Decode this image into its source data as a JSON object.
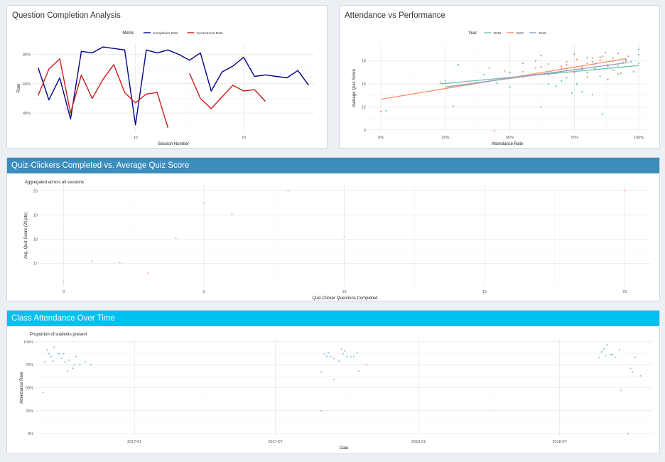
{
  "boxes": {
    "completion": {
      "title": "Question Completion Analysis"
    },
    "attendance_perf": {
      "title": "Attendance vs Performance"
    },
    "clickers": {
      "title": "Quiz-Clickers Completed vs. Average Quiz Score"
    },
    "attendance_time": {
      "title": "Class Attendance Over Time"
    }
  },
  "chart_data": [
    {
      "id": "completion",
      "type": "line",
      "xlabel": "Session Number",
      "ylabel": "Rate",
      "legend_title": "Metric",
      "legend_position": "top",
      "xticks": [
        10,
        20
      ],
      "yticks": [
        0.4,
        0.6,
        0.8
      ],
      "ytick_labels": [
        "40%",
        "60%",
        "80%"
      ],
      "xlim": [
        0.5,
        26.5
      ],
      "ylim": [
        0.27,
        0.87
      ],
      "grid": true,
      "series": [
        {
          "name": "Completion Rate",
          "color": "#00008b",
          "x": [
            1,
            2,
            3,
            4,
            5,
            6,
            7,
            8,
            9,
            10,
            11,
            12,
            13,
            14,
            15,
            16,
            17,
            18,
            19,
            20,
            21,
            22,
            23,
            24,
            25,
            26
          ],
          "y": [
            0.71,
            0.49,
            0.64,
            0.36,
            0.82,
            0.81,
            0.85,
            0.84,
            0.83,
            0.32,
            0.83,
            0.81,
            0.83,
            0.8,
            0.76,
            0.81,
            0.55,
            0.68,
            0.72,
            0.78,
            0.65,
            0.66,
            0.65,
            0.64,
            0.69,
            0.59
          ]
        },
        {
          "name": "Correctness Rate",
          "color": "#cc1a1a",
          "x": [
            1,
            2,
            3,
            4,
            5,
            6,
            7,
            8,
            9,
            10,
            11,
            12,
            13,
            14,
            15,
            16,
            17,
            18,
            19,
            20,
            21,
            22,
            23,
            24,
            25,
            26
          ],
          "y": [
            0.52,
            0.7,
            0.77,
            0.4,
            0.66,
            0.5,
            0.63,
            0.73,
            0.54,
            0.47,
            0.53,
            0.54,
            0.3,
            null,
            0.67,
            0.5,
            0.43,
            0.51,
            0.59,
            0.55,
            0.56,
            0.48,
            null,
            null,
            null,
            null
          ]
        }
      ]
    },
    {
      "id": "attendance_perf",
      "type": "scatter",
      "xlabel": "Attendance Rate",
      "ylabel": "Average Quiz Score",
      "legend_title": "Year",
      "legend_position": "top",
      "xticks": [
        0,
        0.25,
        0.5,
        0.75,
        1
      ],
      "xtick_labels": [
        "0%",
        "25%",
        "50%",
        "75%",
        "100%"
      ],
      "yticks": [
        9,
        12,
        15,
        18
      ],
      "xlim": [
        -0.05,
        1.03
      ],
      "ylim": [
        8.7,
        20.2
      ],
      "grid": true,
      "series": [
        {
          "name": "2016",
          "color": "#66c2a5",
          "points": [
            [
              0.02,
              11.5
            ],
            [
              0.25,
              15.4
            ],
            [
              0.3,
              17.5
            ],
            [
              0.4,
              16.2
            ],
            [
              0.45,
              15.1
            ],
            [
              0.5,
              14.6
            ],
            [
              0.55,
              15.9
            ],
            [
              0.6,
              16.3
            ],
            [
              0.62,
              12.0
            ],
            [
              0.65,
              15.0
            ],
            [
              0.68,
              14.7
            ],
            [
              0.7,
              15.4
            ],
            [
              0.72,
              15.8
            ],
            [
              0.74,
              13.8
            ],
            [
              0.75,
              16.9
            ],
            [
              0.76,
              15.0
            ],
            [
              0.78,
              14.0
            ],
            [
              0.8,
              16.5
            ],
            [
              0.82,
              13.6
            ],
            [
              0.83,
              17.0
            ],
            [
              0.85,
              16.0
            ],
            [
              0.86,
              11.1
            ],
            [
              0.88,
              15.6
            ],
            [
              0.9,
              16.8
            ],
            [
              0.92,
              17.4
            ],
            [
              0.93,
              16.4
            ],
            [
              0.95,
              18.2
            ],
            [
              0.97,
              17.9
            ],
            [
              0.98,
              16.6
            ],
            [
              1.0,
              19.5
            ],
            [
              1.0,
              18.8
            ],
            [
              1.0,
              17.7
            ]
          ],
          "fit": [
            [
              0.23,
              15.0
            ],
            [
              1.0,
              17.4
            ]
          ]
        },
        {
          "name": "2017",
          "color": "#fc8d62",
          "points": [
            [
              0.0,
              11.4
            ],
            [
              0.23,
              15.2
            ],
            [
              0.44,
              8.9
            ],
            [
              0.48,
              16.7
            ],
            [
              0.55,
              16.6
            ],
            [
              0.6,
              17.1
            ],
            [
              0.62,
              17.2
            ],
            [
              0.65,
              17.6
            ],
            [
              0.68,
              16.4
            ],
            [
              0.7,
              17.3
            ],
            [
              0.72,
              17.9
            ],
            [
              0.75,
              16.5
            ],
            [
              0.76,
              18.2
            ],
            [
              0.78,
              17.2
            ],
            [
              0.8,
              17.7
            ],
            [
              0.82,
              18.4
            ],
            [
              0.83,
              17.6
            ],
            [
              0.85,
              18.1
            ],
            [
              0.86,
              18.6
            ],
            [
              0.88,
              17.5
            ],
            [
              0.9,
              18.4
            ],
            [
              0.92,
              16.3
            ],
            [
              0.94,
              17.8
            ],
            [
              0.95,
              18.0
            ],
            [
              0.8,
              15.9
            ],
            [
              0.72,
              16.8
            ]
          ],
          "fit": [
            [
              0.0,
              13.0
            ],
            [
              0.95,
              18.3
            ]
          ]
        },
        {
          "name": "2018",
          "color": "#8da0cb",
          "points": [
            [
              0.28,
              12.1
            ],
            [
              0.42,
              17.1
            ],
            [
              0.5,
              16.5
            ],
            [
              0.55,
              17.7
            ],
            [
              0.6,
              18.0
            ],
            [
              0.62,
              18.7
            ],
            [
              0.65,
              16.2
            ],
            [
              0.7,
              17.0
            ],
            [
              0.72,
              17.5
            ],
            [
              0.75,
              18.9
            ],
            [
              0.78,
              16.9
            ],
            [
              0.8,
              18.4
            ],
            [
              0.82,
              17.9
            ],
            [
              0.85,
              18.5
            ],
            [
              0.87,
              19.1
            ],
            [
              0.88,
              17.3
            ],
            [
              0.9,
              18.0
            ],
            [
              0.92,
              19.0
            ],
            [
              0.94,
              17.8
            ],
            [
              0.96,
              18.6
            ]
          ],
          "fit": [
            [
              0.25,
              14.6
            ],
            [
              0.96,
              17.8
            ]
          ]
        }
      ]
    },
    {
      "id": "clickers",
      "type": "scatter",
      "subtitle": "Aggregated across all sessions",
      "xlabel": "Quiz-Clicker Questions Completed",
      "ylabel": "Avg. Quiz Score (20 pts)",
      "xticks": [
        0,
        5,
        10,
        15,
        20
      ],
      "yticks": [
        17,
        18,
        19,
        20
      ],
      "xlim": [
        -0.85,
        20.9
      ],
      "ylim": [
        16.05,
        20.25
      ],
      "grid": true,
      "color": "#f7b6d2",
      "points": [
        [
          0,
          16.25
        ],
        [
          1,
          17.1
        ],
        [
          2,
          17.05
        ],
        [
          3,
          16.6
        ],
        [
          4,
          18.05
        ],
        [
          5,
          19.5
        ],
        [
          6,
          19.05
        ],
        [
          8,
          20.0
        ],
        [
          10,
          18.1
        ],
        [
          20,
          20.0
        ]
      ]
    },
    {
      "id": "attendance_time",
      "type": "scatter",
      "subtitle": "Proportion of students present",
      "xlabel": "Date",
      "ylabel": "Attendance Rate",
      "xticks": [
        "2017-01",
        "2017-07",
        "2018-01",
        "2018-07"
      ],
      "yticks": [
        0,
        0.25,
        0.5,
        0.75,
        1
      ],
      "ytick_labels": [
        "0%",
        "25%",
        "50%",
        "75%",
        "100%"
      ],
      "xlim": [
        "2016-08-27",
        "2018-10-28"
      ],
      "ylim": [
        -0.03,
        1.03
      ],
      "grid": true,
      "color": "#9ecae1",
      "points": [
        [
          "2016-09-06",
          0.45
        ],
        [
          "2016-09-08",
          0.78
        ],
        [
          "2016-09-11",
          0.91
        ],
        [
          "2016-09-13",
          0.87
        ],
        [
          "2016-09-16",
          0.84
        ],
        [
          "2016-09-18",
          0.79
        ],
        [
          "2016-09-20",
          0.94
        ],
        [
          "2016-09-25",
          0.87
        ],
        [
          "2016-09-27",
          0.87
        ],
        [
          "2016-09-30",
          0.82
        ],
        [
          "2016-10-02",
          0.87
        ],
        [
          "2016-10-04",
          0.78
        ],
        [
          "2016-10-07",
          0.68
        ],
        [
          "2016-10-09",
          0.8
        ],
        [
          "2016-10-14",
          0.71
        ],
        [
          "2016-10-16",
          0.75
        ],
        [
          "2016-10-18",
          0.84
        ],
        [
          "2016-10-23",
          0.75
        ],
        [
          "2016-10-30",
          0.78
        ],
        [
          "2016-11-06",
          0.75
        ],
        [
          "2017-08-29",
          0.25
        ],
        [
          "2017-08-29",
          0.67
        ],
        [
          "2017-09-02",
          0.87
        ],
        [
          "2017-09-05",
          0.84
        ],
        [
          "2017-09-07",
          0.88
        ],
        [
          "2017-09-10",
          0.84
        ],
        [
          "2017-09-14",
          0.59
        ],
        [
          "2017-09-14",
          0.82
        ],
        [
          "2017-09-21",
          0.79
        ],
        [
          "2017-09-24",
          0.92
        ],
        [
          "2017-09-26",
          0.87
        ],
        [
          "2017-09-28",
          0.9
        ],
        [
          "2017-10-01",
          0.84
        ],
        [
          "2017-10-06",
          0.84
        ],
        [
          "2017-10-10",
          0.84
        ],
        [
          "2017-10-14",
          0.88
        ],
        [
          "2017-10-16",
          0.68
        ],
        [
          "2017-10-26",
          0.75
        ],
        [
          "2018-08-21",
          0.83
        ],
        [
          "2018-08-24",
          0.89
        ],
        [
          "2018-08-27",
          0.92
        ],
        [
          "2018-08-29",
          0.85
        ],
        [
          "2018-08-31",
          0.97
        ],
        [
          "2018-09-05",
          0.86
        ],
        [
          "2018-09-07",
          0.86
        ],
        [
          "2018-09-11",
          0.83
        ],
        [
          "2018-09-16",
          0.91
        ],
        [
          "2018-09-18",
          0.47
        ],
        [
          "2018-09-27",
          0.0
        ],
        [
          "2018-09-30",
          0.71
        ],
        [
          "2018-10-03",
          0.67
        ],
        [
          "2018-10-06",
          0.83
        ],
        [
          "2018-10-13",
          0.63
        ]
      ]
    }
  ]
}
